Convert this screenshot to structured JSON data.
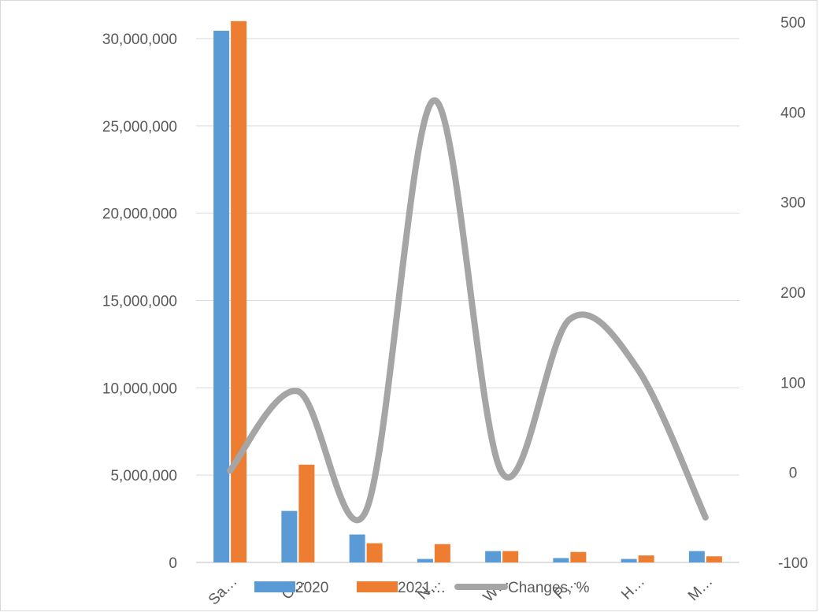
{
  "chart_data": {
    "type": "bar",
    "categories": [
      "Sa…",
      "C…",
      "…",
      "N…",
      "W…",
      "P…",
      "H…",
      "M…"
    ],
    "series": [
      {
        "name": "2020",
        "type": "bar",
        "axis": "left",
        "color": "#5b9bd5",
        "values": [
          30450000,
          2950000,
          1600000,
          200000,
          650000,
          250000,
          200000,
          650000
        ]
      },
      {
        "name": "2021",
        "type": "bar",
        "axis": "left",
        "color": "#ed7d31",
        "values": [
          31000000,
          5600000,
          1100000,
          1050000,
          650000,
          600000,
          400000,
          350000
        ]
      },
      {
        "name": "Changes, %",
        "type": "line",
        "axis": "right",
        "color": "#a5a5a5",
        "smooth": true,
        "values": [
          2,
          90,
          -43,
          413,
          0,
          170,
          115,
          -50
        ]
      }
    ],
    "y_left": {
      "ylim": [
        0,
        30000000
      ],
      "ticks": [
        0,
        5000000,
        10000000,
        15000000,
        20000000,
        25000000,
        30000000
      ],
      "tick_labels": [
        "0",
        "5,000,000",
        "10,000,000",
        "15,000,000",
        "20,000,000",
        "25,000,000",
        "30,000,000"
      ]
    },
    "y_right": {
      "ylim": [
        -100,
        500
      ],
      "ticks": [
        -100,
        0,
        100,
        200,
        300,
        400,
        500
      ],
      "tick_labels": [
        "-100",
        "0",
        "100",
        "200",
        "300",
        "400",
        "500"
      ]
    },
    "grid": true,
    "legend": {
      "position": "bottom",
      "labels": [
        "2020",
        "2021…",
        "Changes, %"
      ]
    }
  }
}
